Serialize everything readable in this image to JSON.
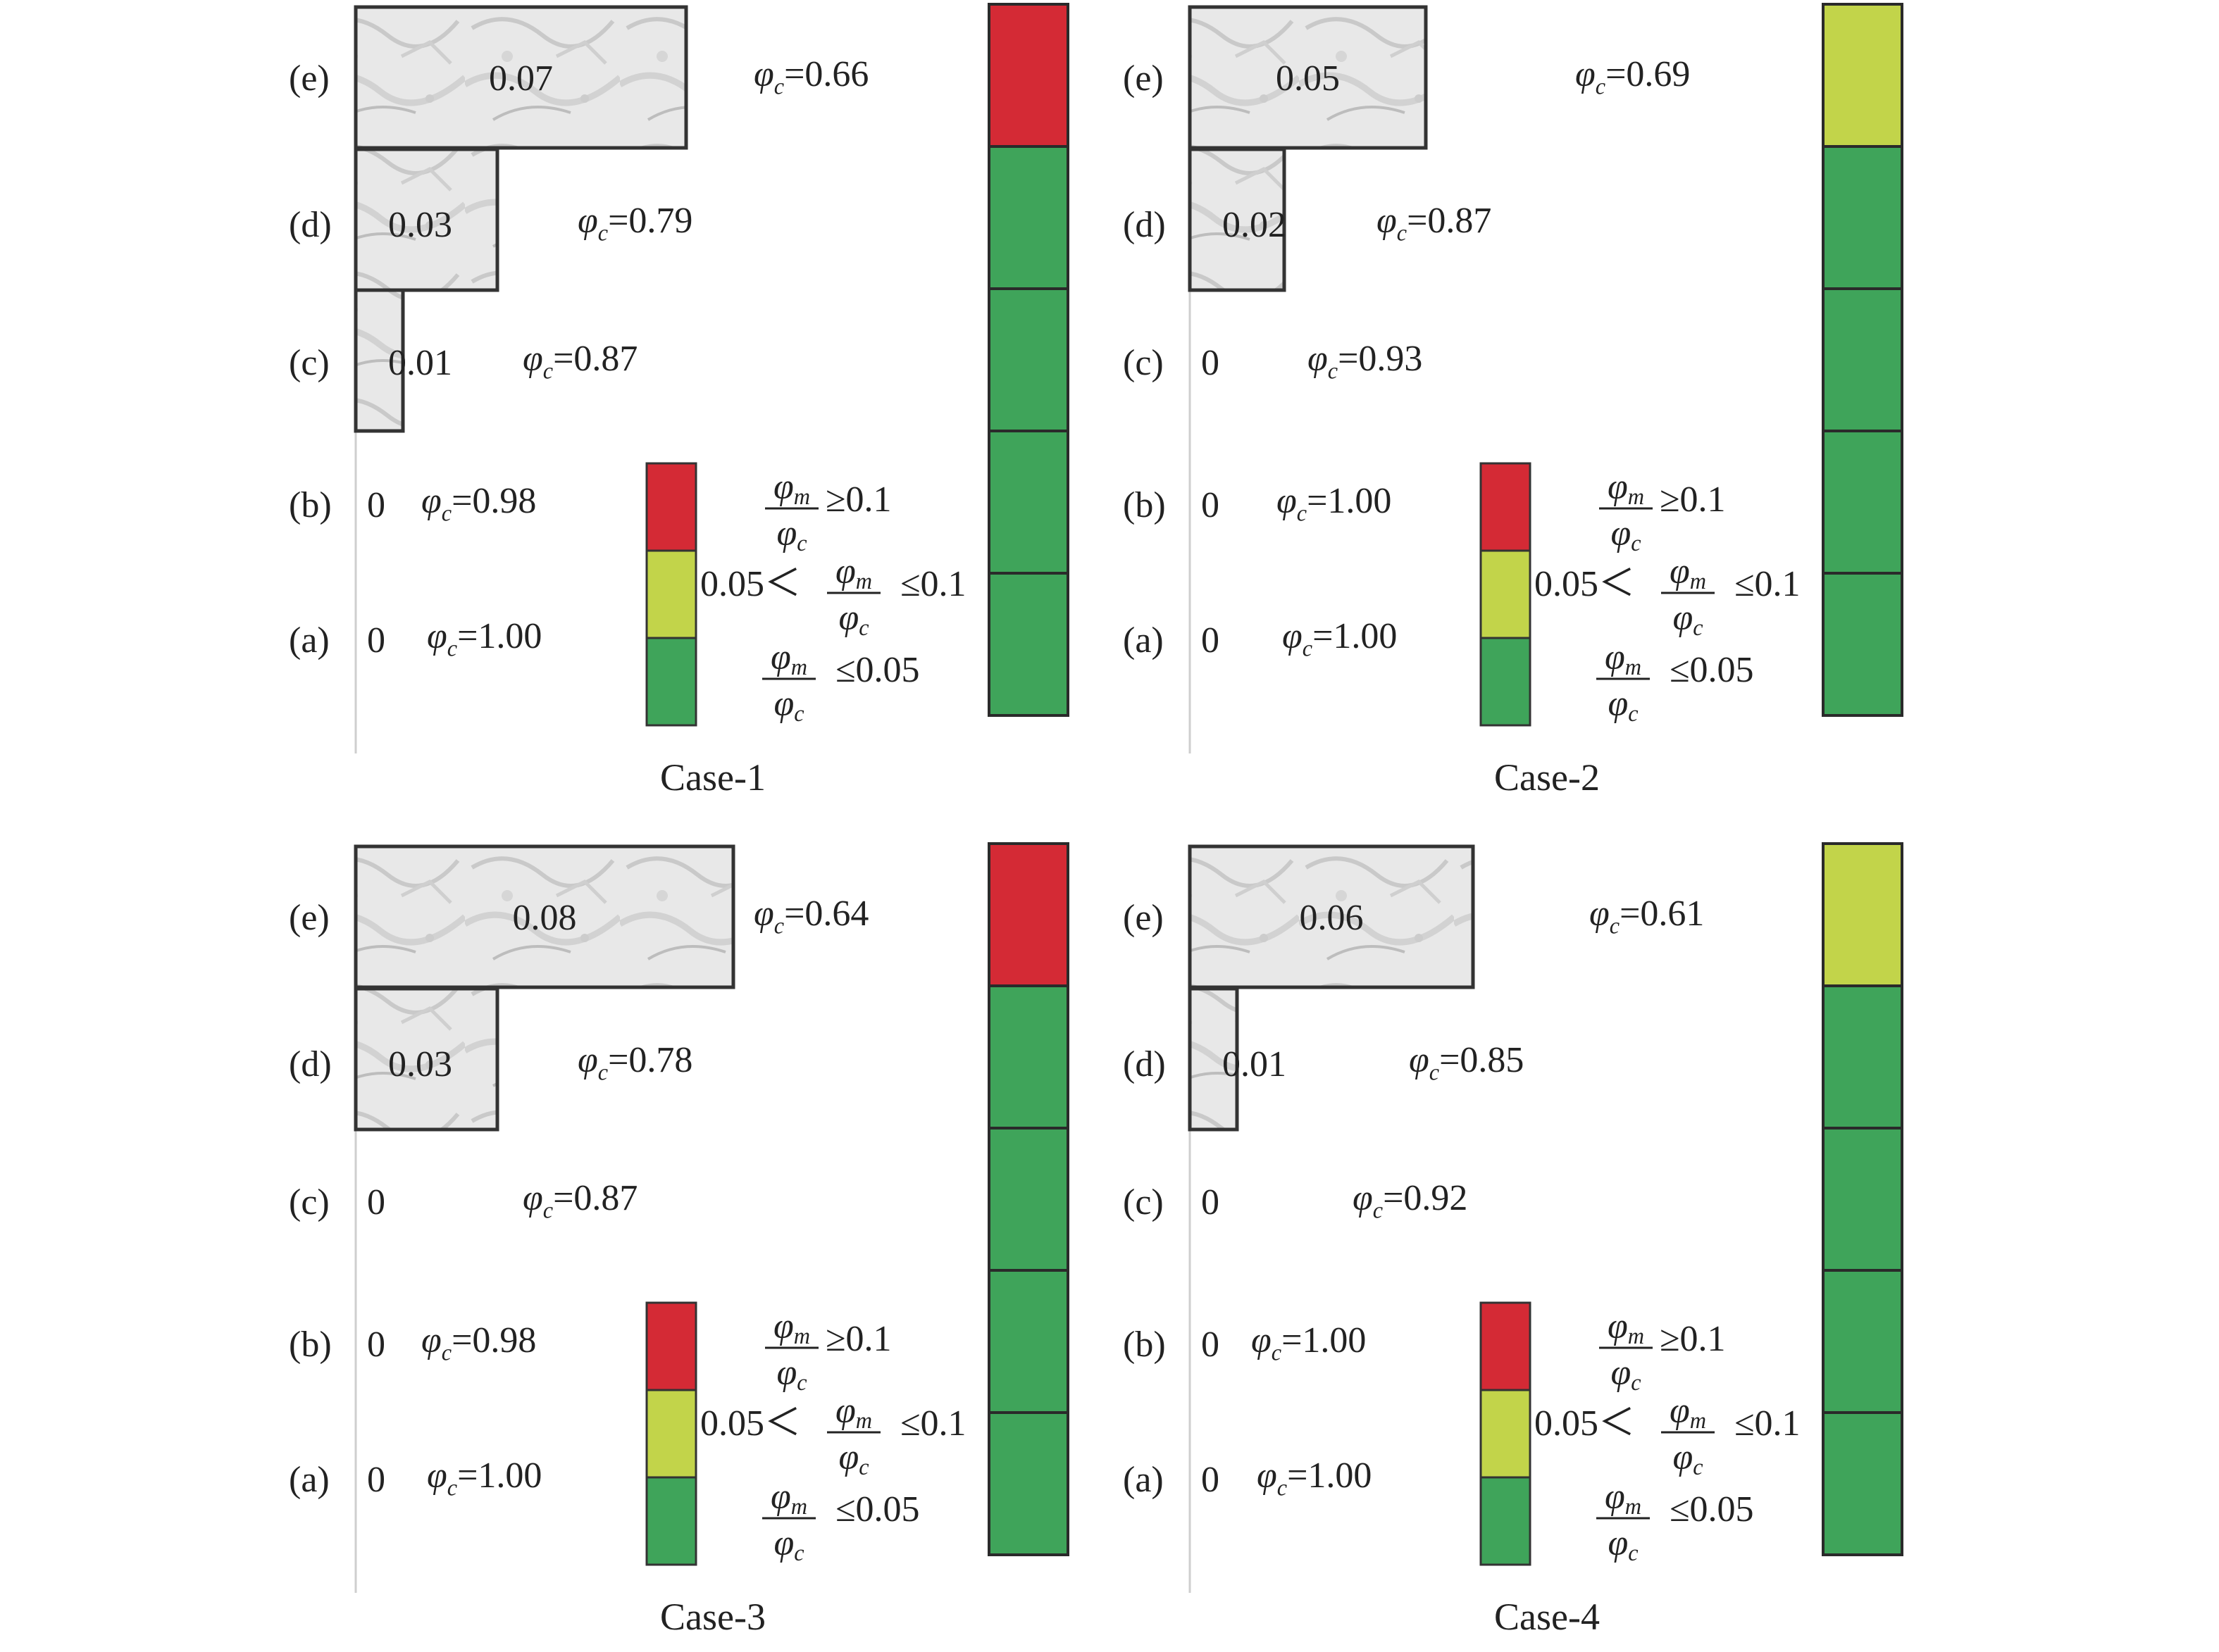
{
  "chart_data": [
    {
      "type": "bar",
      "orientation": "horizontal",
      "title": "Case-1",
      "categories": [
        "(e)",
        "(d)",
        "(c)",
        "(b)",
        "(a)"
      ],
      "values": [
        0.07,
        0.03,
        0.01,
        0,
        0
      ],
      "value_labels": [
        "0.07",
        "0.03",
        "0.01",
        "0",
        "0"
      ],
      "phi_c": [
        "=0.66",
        "=0.79",
        "=0.87",
        "=0.98",
        "=1.00"
      ],
      "status_column": [
        "red",
        "green",
        "green",
        "green",
        "green"
      ]
    },
    {
      "type": "bar",
      "orientation": "horizontal",
      "title": "Case-2",
      "categories": [
        "(e)",
        "(d)",
        "(c)",
        "(b)",
        "(a)"
      ],
      "values": [
        0.05,
        0.02,
        0,
        0,
        0
      ],
      "value_labels": [
        "0.05",
        "0.02",
        "0",
        "0",
        "0"
      ],
      "phi_c": [
        "=0.69",
        "=0.87",
        "=0.93",
        "=1.00",
        "=1.00"
      ],
      "status_column": [
        "yellow",
        "green",
        "green",
        "green",
        "green"
      ]
    },
    {
      "type": "bar",
      "orientation": "horizontal",
      "title": "Case-3",
      "categories": [
        "(e)",
        "(d)",
        "(c)",
        "(b)",
        "(a)"
      ],
      "values": [
        0.08,
        0.03,
        0,
        0,
        0
      ],
      "value_labels": [
        "0.08",
        "0.03",
        "0",
        "0",
        "0"
      ],
      "phi_c": [
        "=0.64",
        "=0.78",
        "=0.87",
        "=0.98",
        "=1.00"
      ],
      "status_column": [
        "red",
        "green",
        "green",
        "green",
        "green"
      ]
    },
    {
      "type": "bar",
      "orientation": "horizontal",
      "title": "Case-4",
      "categories": [
        "(e)",
        "(d)",
        "(c)",
        "(b)",
        "(a)"
      ],
      "values": [
        0.06,
        0.01,
        0,
        0,
        0
      ],
      "value_labels": [
        "0.06",
        "0.01",
        "0",
        "0",
        "0"
      ],
      "phi_c": [
        "=0.61",
        "=0.85",
        "=0.92",
        "=1.00",
        "=1.00"
      ],
      "status_column": [
        "yellow",
        "green",
        "green",
        "green",
        "green"
      ]
    }
  ],
  "legend": {
    "phi_c_symbol": "φ",
    "phi_c_sub": "c",
    "phi_m_symbol": "φ",
    "phi_m_sub": "m",
    "red_condition": "≥0.1",
    "yellow_lower": "0.05＜",
    "yellow_upper": "≤0.1",
    "green_condition": "≤0.05"
  },
  "colors": {
    "red": "#d42a35",
    "yellow": "#c2d44a",
    "green": "#3fa45a",
    "bar_fill": "#e6e6e6"
  }
}
